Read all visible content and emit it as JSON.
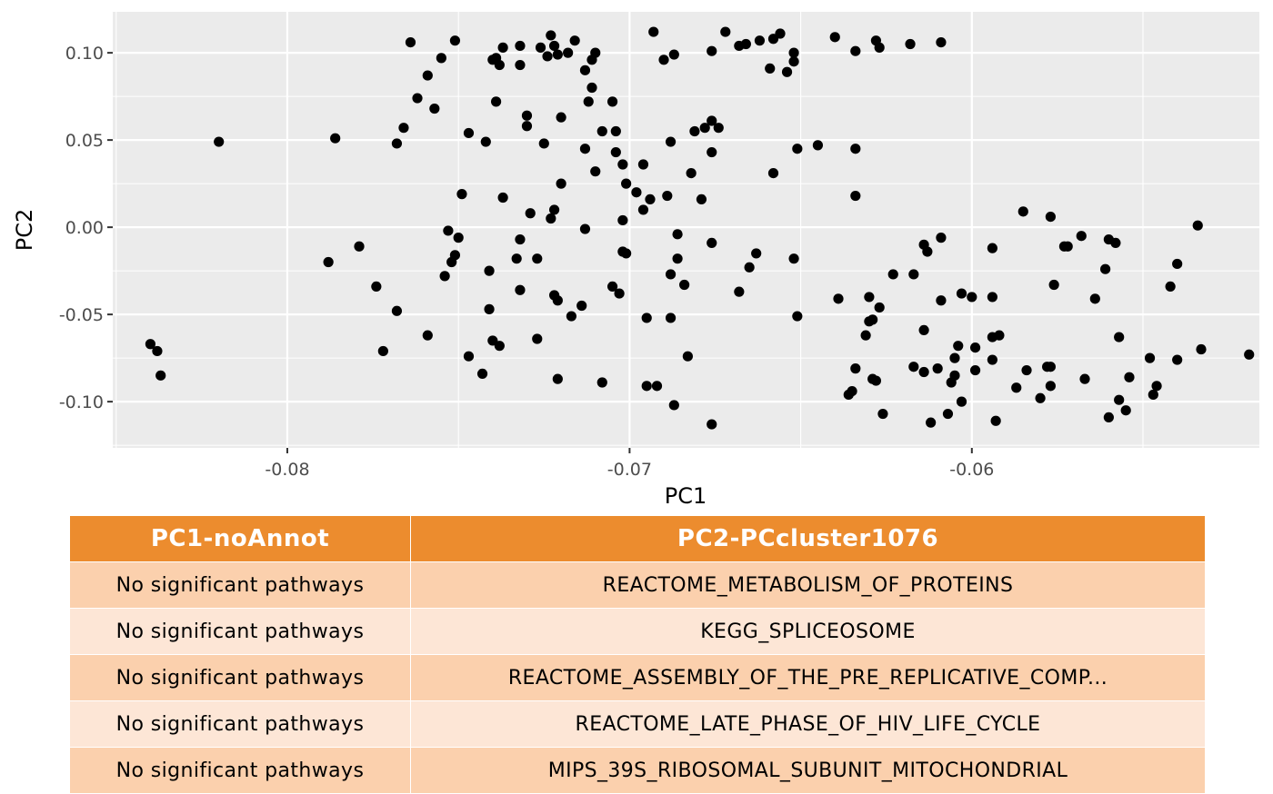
{
  "chart_data": {
    "type": "scatter",
    "xlabel": "PC1",
    "ylabel": "PC2",
    "xlim": [
      -0.0851,
      -0.0516
    ],
    "ylim": [
      -0.1265,
      0.1235
    ],
    "xticks": [
      -0.08,
      -0.07,
      -0.06
    ],
    "xtick_labels": [
      "-0.08",
      "-0.07",
      "-0.06"
    ],
    "yticks": [
      0.1,
      0.05,
      0.0,
      -0.05,
      -0.1
    ],
    "ytick_labels": [
      "0.10",
      "0.05",
      "0.00",
      "-0.05",
      "-0.10"
    ],
    "grid": true,
    "point_color": "#000000",
    "panel_color": "#ebebeb",
    "points": [
      [
        -0.084,
        -0.067
      ],
      [
        -0.0838,
        -0.071
      ],
      [
        -0.0837,
        -0.085
      ],
      [
        -0.082,
        0.049
      ],
      [
        -0.0786,
        0.051
      ],
      [
        -0.0788,
        -0.02
      ],
      [
        -0.0779,
        -0.011
      ],
      [
        -0.0774,
        -0.034
      ],
      [
        -0.0772,
        -0.071
      ],
      [
        -0.0768,
        -0.048
      ],
      [
        -0.0766,
        0.057
      ],
      [
        -0.0768,
        0.048
      ],
      [
        -0.0764,
        0.106
      ],
      [
        -0.0762,
        0.074
      ],
      [
        -0.0759,
        0.087
      ],
      [
        -0.0757,
        0.068
      ],
      [
        -0.0755,
        0.097
      ],
      [
        -0.0753,
        -0.002
      ],
      [
        -0.0754,
        -0.028
      ],
      [
        -0.0752,
        -0.02
      ],
      [
        -0.0751,
        -0.016
      ],
      [
        -0.075,
        -0.006
      ],
      [
        -0.0749,
        0.019
      ],
      [
        -0.0759,
        -0.062
      ],
      [
        -0.0751,
        0.107
      ],
      [
        -0.0747,
        -0.074
      ],
      [
        -0.0747,
        0.054
      ],
      [
        -0.0743,
        -0.084
      ],
      [
        -0.0742,
        0.049
      ],
      [
        -0.0741,
        -0.047
      ],
      [
        -0.0741,
        -0.025
      ],
      [
        -0.074,
        0.096
      ],
      [
        -0.074,
        -0.065
      ],
      [
        -0.0739,
        0.097
      ],
      [
        -0.0739,
        0.072
      ],
      [
        -0.0738,
        0.093
      ],
      [
        -0.0738,
        -0.068
      ],
      [
        -0.0737,
        0.017
      ],
      [
        -0.0737,
        0.103
      ],
      [
        -0.0733,
        -0.018
      ],
      [
        -0.0732,
        -0.036
      ],
      [
        -0.0732,
        -0.007
      ],
      [
        -0.0732,
        0.093
      ],
      [
        -0.0732,
        0.104
      ],
      [
        -0.073,
        0.064
      ],
      [
        -0.073,
        0.058
      ],
      [
        -0.0729,
        0.008
      ],
      [
        -0.0727,
        -0.018
      ],
      [
        -0.0727,
        -0.064
      ],
      [
        -0.0726,
        0.103
      ],
      [
        -0.0725,
        0.048
      ],
      [
        -0.0724,
        0.098
      ],
      [
        -0.0723,
        0.11
      ],
      [
        -0.0723,
        0.005
      ],
      [
        -0.0722,
        0.01
      ],
      [
        -0.0722,
        0.104
      ],
      [
        -0.0722,
        -0.039
      ],
      [
        -0.0721,
        0.099
      ],
      [
        -0.072,
        0.063
      ],
      [
        -0.0721,
        -0.042
      ],
      [
        -0.0721,
        -0.087
      ],
      [
        -0.072,
        0.025
      ],
      [
        -0.0718,
        0.1
      ],
      [
        -0.0717,
        -0.051
      ],
      [
        -0.0716,
        0.107
      ],
      [
        -0.0714,
        -0.045
      ],
      [
        -0.0713,
        -0.001
      ],
      [
        -0.0713,
        0.09
      ],
      [
        -0.0713,
        0.045
      ],
      [
        -0.0712,
        0.072
      ],
      [
        -0.0711,
        0.08
      ],
      [
        -0.0711,
        0.096
      ],
      [
        -0.071,
        0.1
      ],
      [
        -0.071,
        0.032
      ],
      [
        -0.0708,
        -0.089
      ],
      [
        -0.0708,
        0.055
      ],
      [
        -0.0705,
        0.072
      ],
      [
        -0.0705,
        -0.034
      ],
      [
        -0.0704,
        0.055
      ],
      [
        -0.0704,
        0.043
      ],
      [
        -0.0703,
        -0.038
      ],
      [
        -0.0702,
        0.036
      ],
      [
        -0.0702,
        0.004
      ],
      [
        -0.0702,
        -0.014
      ],
      [
        -0.0701,
        0.025
      ],
      [
        -0.0701,
        -0.015
      ],
      [
        -0.0698,
        0.02
      ],
      [
        -0.0696,
        0.01
      ],
      [
        -0.0696,
        0.036
      ],
      [
        -0.0695,
        -0.052
      ],
      [
        -0.0695,
        -0.091
      ],
      [
        -0.0694,
        0.016
      ],
      [
        -0.0693,
        0.112
      ],
      [
        -0.0692,
        -0.091
      ],
      [
        -0.069,
        0.096
      ],
      [
        -0.0689,
        0.018
      ],
      [
        -0.0688,
        -0.052
      ],
      [
        -0.0688,
        0.049
      ],
      [
        -0.0688,
        -0.027
      ],
      [
        -0.0687,
        0.099
      ],
      [
        -0.0687,
        -0.102
      ],
      [
        -0.0686,
        -0.018
      ],
      [
        -0.0686,
        -0.004
      ],
      [
        -0.0684,
        -0.033
      ],
      [
        -0.0683,
        -0.074
      ],
      [
        -0.0682,
        0.031
      ],
      [
        -0.0681,
        0.055
      ],
      [
        -0.0679,
        0.016
      ],
      [
        -0.0678,
        0.057
      ],
      [
        -0.0676,
        0.061
      ],
      [
        -0.0676,
        0.043
      ],
      [
        -0.0676,
        -0.009
      ],
      [
        -0.0676,
        -0.113
      ],
      [
        -0.0676,
        0.101
      ],
      [
        -0.0674,
        0.057
      ],
      [
        -0.0672,
        0.112
      ],
      [
        -0.0668,
        0.104
      ],
      [
        -0.0668,
        -0.037
      ],
      [
        -0.0666,
        0.105
      ],
      [
        -0.0665,
        -0.023
      ],
      [
        -0.0663,
        -0.015
      ],
      [
        -0.0662,
        0.107
      ],
      [
        -0.0659,
        0.091
      ],
      [
        -0.0658,
        0.108
      ],
      [
        -0.0658,
        0.031
      ],
      [
        -0.0656,
        0.111
      ],
      [
        -0.0654,
        0.089
      ],
      [
        -0.0652,
        0.095
      ],
      [
        -0.0652,
        0.1
      ],
      [
        -0.0652,
        -0.018
      ],
      [
        -0.0651,
        0.045
      ],
      [
        -0.0651,
        -0.051
      ],
      [
        -0.0645,
        0.047
      ],
      [
        -0.064,
        0.109
      ],
      [
        -0.0639,
        -0.041
      ],
      [
        -0.0634,
        0.101
      ],
      [
        -0.0634,
        0.045
      ],
      [
        -0.0634,
        0.018
      ],
      [
        -0.0634,
        -0.081
      ],
      [
        -0.0635,
        -0.094
      ],
      [
        -0.0636,
        -0.096
      ],
      [
        -0.0631,
        -0.062
      ],
      [
        -0.063,
        -0.054
      ],
      [
        -0.063,
        -0.04
      ],
      [
        -0.0629,
        -0.053
      ],
      [
        -0.0629,
        -0.087
      ],
      [
        -0.0628,
        0.107
      ],
      [
        -0.0628,
        -0.088
      ],
      [
        -0.0627,
        0.103
      ],
      [
        -0.0627,
        -0.046
      ],
      [
        -0.0626,
        -0.107
      ],
      [
        -0.0623,
        -0.027
      ],
      [
        -0.0618,
        0.105
      ],
      [
        -0.0617,
        -0.027
      ],
      [
        -0.0617,
        -0.08
      ],
      [
        -0.0614,
        -0.01
      ],
      [
        -0.0614,
        -0.083
      ],
      [
        -0.0614,
        -0.059
      ],
      [
        -0.0613,
        -0.014
      ],
      [
        -0.0612,
        -0.112
      ],
      [
        -0.061,
        -0.081
      ],
      [
        -0.0609,
        0.106
      ],
      [
        -0.0609,
        -0.042
      ],
      [
        -0.0609,
        -0.006
      ],
      [
        -0.0607,
        -0.107
      ],
      [
        -0.0606,
        -0.089
      ],
      [
        -0.0605,
        -0.075
      ],
      [
        -0.0605,
        -0.085
      ],
      [
        -0.0604,
        -0.068
      ],
      [
        -0.0603,
        -0.038
      ],
      [
        -0.0603,
        -0.1
      ],
      [
        -0.06,
        -0.04
      ],
      [
        -0.0599,
        -0.069
      ],
      [
        -0.0599,
        -0.082
      ],
      [
        -0.0594,
        -0.012
      ],
      [
        -0.0594,
        -0.04
      ],
      [
        -0.0594,
        -0.063
      ],
      [
        -0.0594,
        -0.076
      ],
      [
        -0.0593,
        -0.111
      ],
      [
        -0.0592,
        -0.062
      ],
      [
        -0.0587,
        -0.092
      ],
      [
        -0.0585,
        0.009
      ],
      [
        -0.0584,
        -0.082
      ],
      [
        -0.058,
        -0.098
      ],
      [
        -0.0578,
        -0.08
      ],
      [
        -0.0577,
        -0.08
      ],
      [
        -0.0577,
        -0.091
      ],
      [
        -0.0577,
        0.006
      ],
      [
        -0.0576,
        -0.033
      ],
      [
        -0.0573,
        -0.011
      ],
      [
        -0.0572,
        -0.011
      ],
      [
        -0.0568,
        -0.005
      ],
      [
        -0.0567,
        -0.087
      ],
      [
        -0.0564,
        -0.041
      ],
      [
        -0.0561,
        -0.024
      ],
      [
        -0.056,
        -0.007
      ],
      [
        -0.056,
        -0.109
      ],
      [
        -0.0558,
        -0.009
      ],
      [
        -0.0557,
        -0.099
      ],
      [
        -0.0557,
        -0.063
      ],
      [
        -0.0555,
        -0.105
      ],
      [
        -0.0554,
        -0.086
      ],
      [
        -0.0548,
        -0.075
      ],
      [
        -0.0547,
        -0.096
      ],
      [
        -0.0546,
        -0.091
      ],
      [
        -0.0542,
        -0.034
      ],
      [
        -0.054,
        -0.021
      ],
      [
        -0.054,
        -0.076
      ],
      [
        -0.0534,
        0.001
      ],
      [
        -0.0533,
        -0.07
      ],
      [
        -0.0519,
        -0.073
      ]
    ]
  },
  "table": {
    "headers": [
      "PC1-noAnnot",
      "PC2-PCcluster1076"
    ],
    "rows": [
      [
        "No significant pathways",
        "REACTOME_METABOLISM_OF_PROTEINS"
      ],
      [
        "No significant pathways",
        "KEGG_SPLICEOSOME"
      ],
      [
        "No significant pathways",
        "REACTOME_ASSEMBLY_OF_THE_PRE_REPLICATIVE_COMP..."
      ],
      [
        "No significant pathways",
        "REACTOME_LATE_PHASE_OF_HIV_LIFE_CYCLE"
      ],
      [
        "No significant pathways",
        "MIPS_39S_RIBOSOMAL_SUBUNIT_MITOCHONDRIAL"
      ]
    ]
  }
}
